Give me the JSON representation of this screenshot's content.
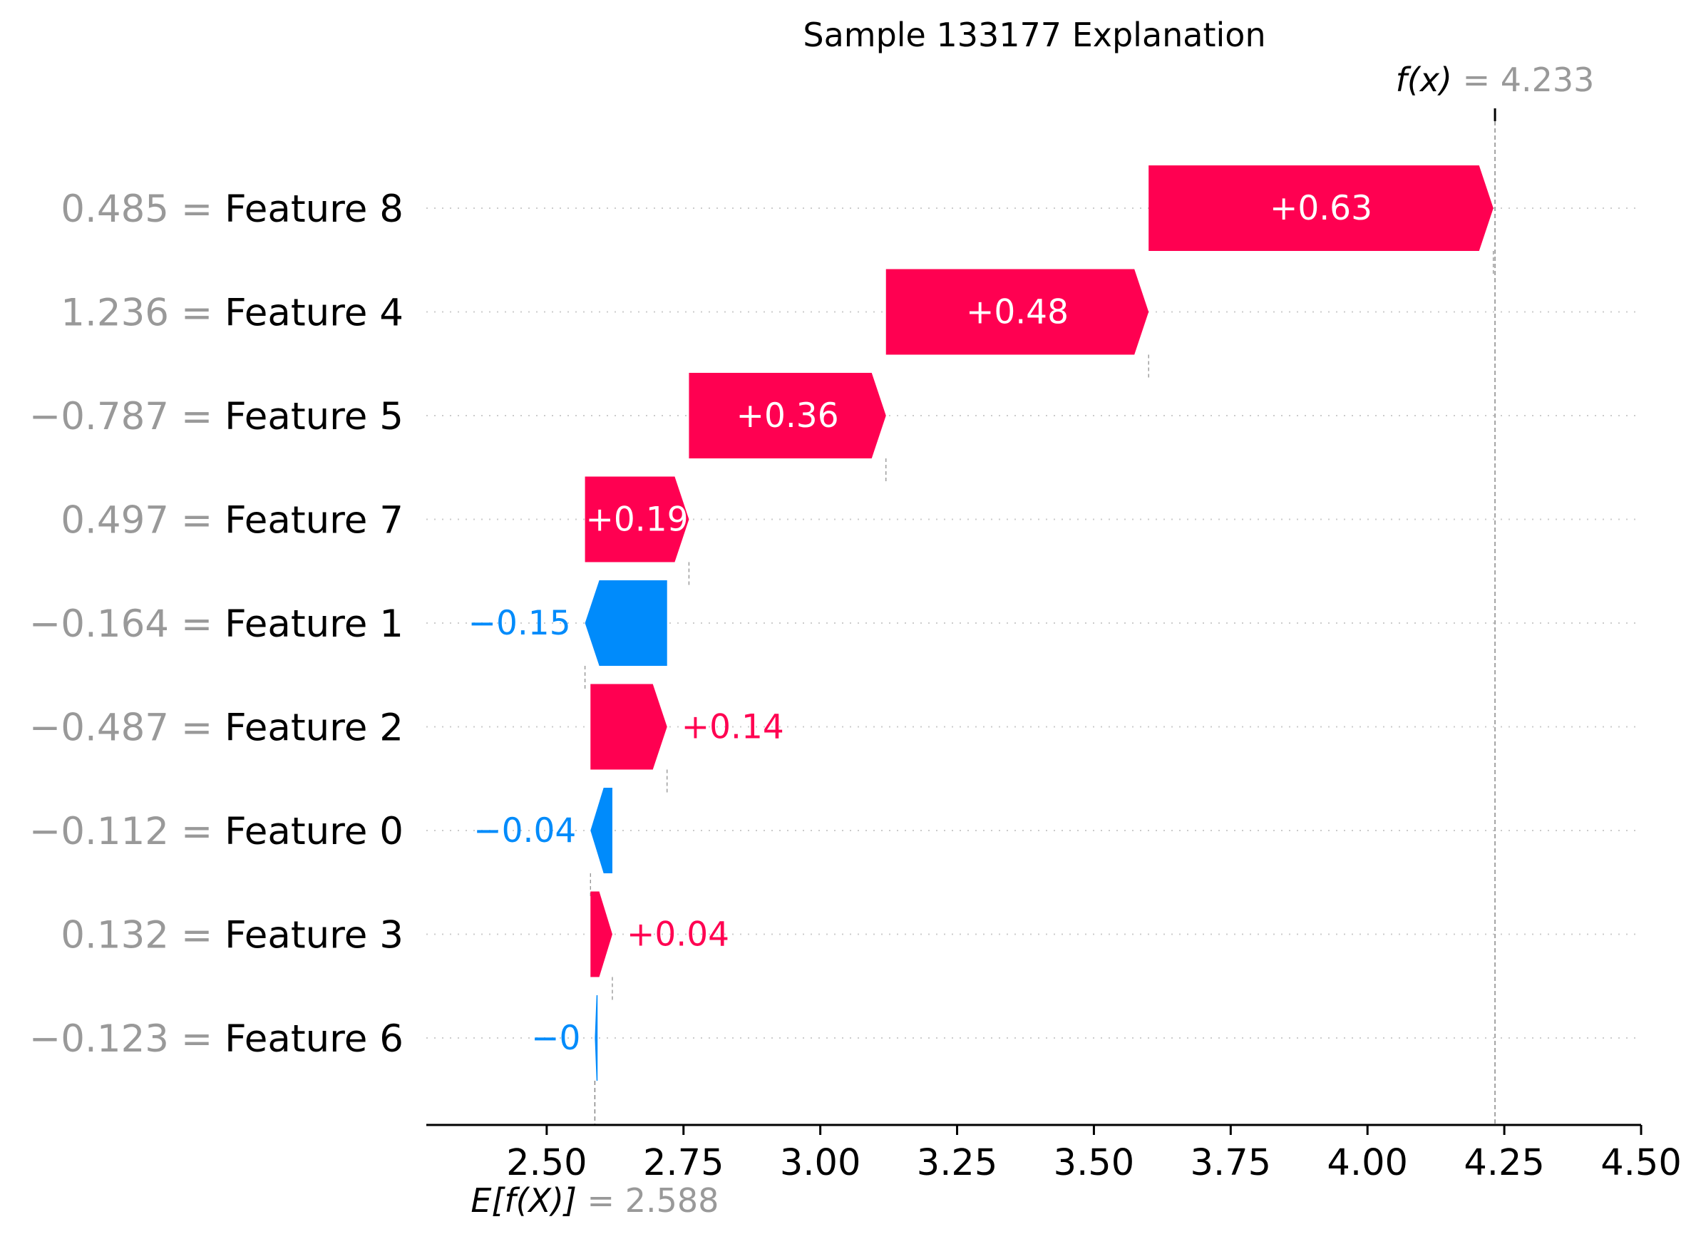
{
  "chart_data": {
    "type": "waterfall",
    "title": "Sample 133177 Explanation",
    "base_value": 2.588,
    "base_value_label": "2.588",
    "base_label_expr": "E[f(X)]",
    "output_value": 4.233,
    "output_value_label": "4.233",
    "output_label_expr": "f(x)",
    "xlim": [
      2.28,
      4.5
    ],
    "xticks": [
      2.5,
      2.75,
      3.0,
      3.25,
      3.5,
      3.75,
      4.0,
      4.25,
      4.5
    ],
    "xtick_labels": [
      "2.50",
      "2.75",
      "3.00",
      "3.25",
      "3.50",
      "3.75",
      "4.00",
      "4.25",
      "4.50"
    ],
    "grid": "horizontal dotted",
    "features": [
      {
        "name": "Feature 8",
        "value_label": "0.485",
        "start": 3.6,
        "shap": 0.63,
        "label": "+0.63"
      },
      {
        "name": "Feature 4",
        "value_label": "1.236",
        "start": 3.12,
        "shap": 0.48,
        "label": "+0.48"
      },
      {
        "name": "Feature 5",
        "value_label": "−0.787",
        "start": 2.76,
        "shap": 0.36,
        "label": "+0.36"
      },
      {
        "name": "Feature 7",
        "value_label": "0.497",
        "start": 2.57,
        "shap": 0.19,
        "label": "+0.19"
      },
      {
        "name": "Feature 1",
        "value_label": "−0.164",
        "start": 2.72,
        "shap": -0.15,
        "label": "−0.15"
      },
      {
        "name": "Feature 2",
        "value_label": "−0.487",
        "start": 2.58,
        "shap": 0.14,
        "label": "+0.14"
      },
      {
        "name": "Feature 0",
        "value_label": "−0.112",
        "start": 2.62,
        "shap": -0.04,
        "label": "−0.04"
      },
      {
        "name": "Feature 3",
        "value_label": "0.132",
        "start": 2.58,
        "shap": 0.04,
        "label": "+0.04"
      },
      {
        "name": "Feature 6",
        "value_label": "−0.123",
        "start": 2.593,
        "shap": -0.005,
        "label": "−0"
      }
    ],
    "colors": {
      "positive": "#ff0051",
      "negative": "#008bfb",
      "grid": "#cccccc",
      "connector": "#888888",
      "muted": "#999999"
    }
  }
}
